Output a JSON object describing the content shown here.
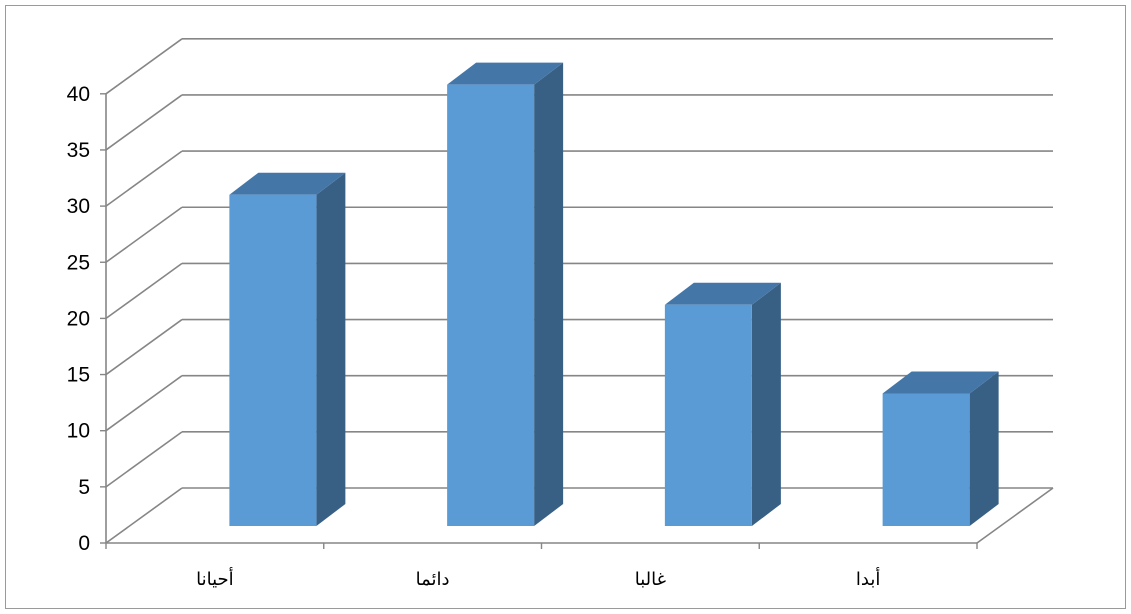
{
  "chart_data": {
    "type": "bar",
    "style": "3d-column",
    "categories": [
      "أحيانا",
      "دائما",
      "غالبا",
      "أبدا"
    ],
    "values": [
      29.5,
      39.3,
      19.7,
      11.8
    ],
    "ylim": [
      0,
      40
    ],
    "yticks": [
      "0",
      "5",
      "10",
      "15",
      "20",
      "25",
      "30",
      "35",
      "40"
    ],
    "grid": true,
    "colors": {
      "front": "#5b9bd5",
      "side": "#376084",
      "top": "#4576a8",
      "grid": "#868686",
      "frame": "#9a9a9a"
    }
  }
}
